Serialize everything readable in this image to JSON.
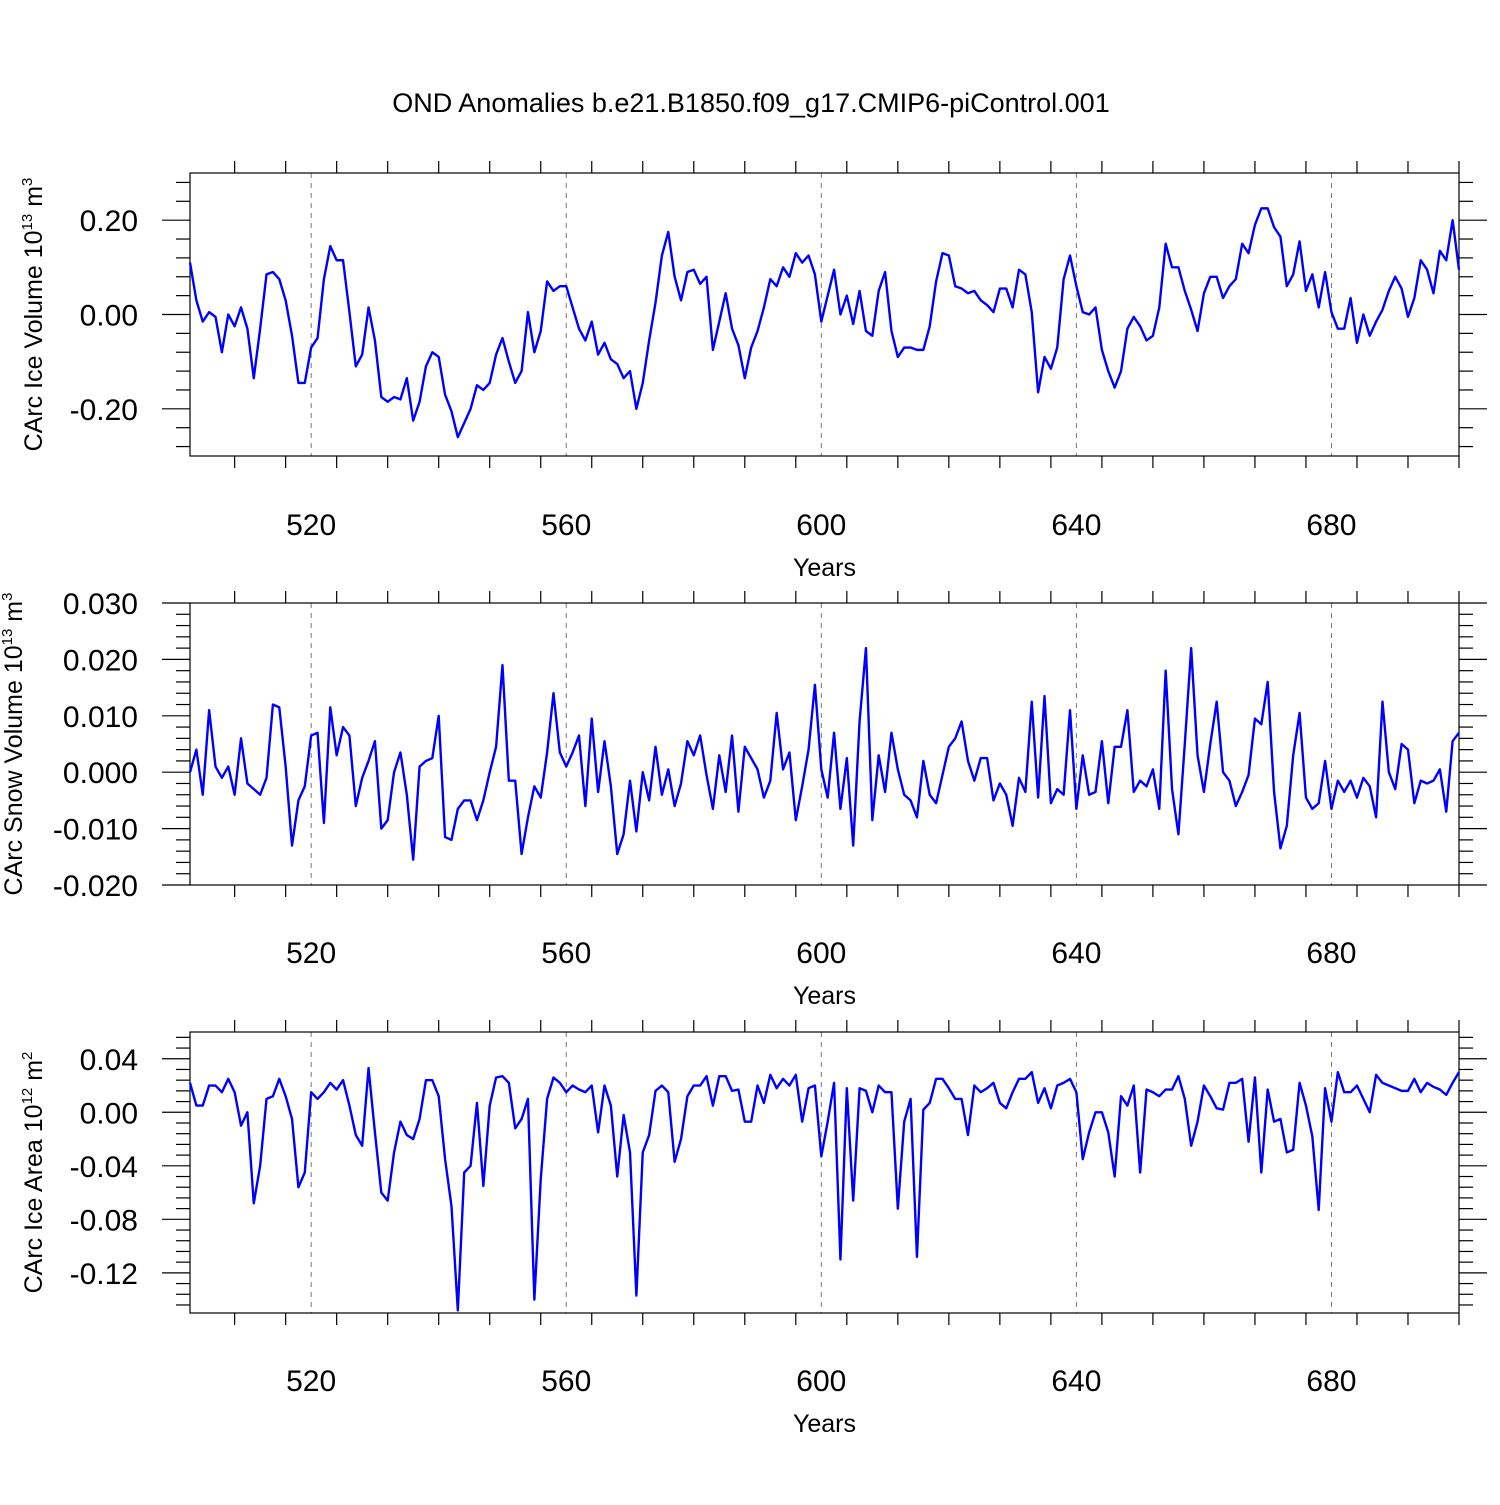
{
  "title": "OND Anomalies b.e21.B1850.f09_g17.CMIP6-piControl.001",
  "chart_data": [
    {
      "type": "line",
      "xlabel": "Years",
      "ylabel": "CArc Ice Volume 10",
      "ylabel_exp": "13",
      "ylabel_unit": " m",
      "ylabel_unit_exp": "3",
      "xlim": [
        501,
        700
      ],
      "ylim": [
        -0.3,
        0.3
      ],
      "xticks": [
        520,
        560,
        600,
        640,
        680
      ],
      "xtick_labels": [
        "520",
        "560",
        "600",
        "640",
        "680"
      ],
      "yticks": [
        -0.2,
        0.0,
        0.2
      ],
      "ytick_labels": [
        "-0.20",
        "0.00",
        "0.20"
      ],
      "series_color": "#0000ff",
      "x_start": 501,
      "values": [
        0.11,
        0.03,
        -0.015,
        0.005,
        -0.005,
        -0.08,
        0.0,
        -0.025,
        0.015,
        -0.03,
        -0.135,
        -0.03,
        0.085,
        0.09,
        0.075,
        0.03,
        -0.045,
        -0.145,
        -0.145,
        -0.07,
        -0.05,
        0.075,
        0.145,
        0.115,
        0.115,
        0.005,
        -0.11,
        -0.085,
        0.015,
        -0.055,
        -0.175,
        -0.185,
        -0.175,
        -0.18,
        -0.135,
        -0.225,
        -0.185,
        -0.11,
        -0.08,
        -0.09,
        -0.17,
        -0.205,
        -0.26,
        -0.23,
        -0.2,
        -0.15,
        -0.16,
        -0.145,
        -0.085,
        -0.05,
        -0.1,
        -0.145,
        -0.12,
        0.005,
        -0.08,
        -0.035,
        0.07,
        0.05,
        0.06,
        0.06,
        0.015,
        -0.03,
        -0.055,
        -0.015,
        -0.085,
        -0.06,
        -0.095,
        -0.105,
        -0.135,
        -0.12,
        -0.2,
        -0.145,
        -0.055,
        0.025,
        0.125,
        0.175,
        0.08,
        0.03,
        0.09,
        0.095,
        0.065,
        0.08,
        -0.075,
        -0.015,
        0.045,
        -0.03,
        -0.065,
        -0.135,
        -0.07,
        -0.035,
        0.015,
        0.075,
        0.06,
        0.1,
        0.08,
        0.13,
        0.11,
        0.125,
        0.085,
        -0.015,
        0.04,
        0.095,
        0.0,
        0.04,
        -0.02,
        0.05,
        -0.035,
        -0.045,
        0.05,
        0.09,
        -0.035,
        -0.09,
        -0.07,
        -0.07,
        -0.075,
        -0.075,
        -0.025,
        0.07,
        0.13,
        0.125,
        0.06,
        0.055,
        0.045,
        0.05,
        0.03,
        0.02,
        0.005,
        0.055,
        0.055,
        0.015,
        0.095,
        0.085,
        0.005,
        -0.165,
        -0.09,
        -0.115,
        -0.07,
        0.075,
        0.125,
        0.06,
        0.005,
        0.0,
        0.015,
        -0.075,
        -0.12,
        -0.155,
        -0.12,
        -0.03,
        -0.005,
        -0.025,
        -0.055,
        -0.045,
        0.015,
        0.15,
        0.1,
        0.1,
        0.05,
        0.01,
        -0.035,
        0.045,
        0.08,
        0.08,
        0.035,
        0.06,
        0.075,
        0.15,
        0.13,
        0.19,
        0.225,
        0.225,
        0.185,
        0.165,
        0.06,
        0.085,
        0.155,
        0.05,
        0.085,
        0.015,
        0.09,
        0.005,
        -0.03,
        -0.03,
        0.035,
        -0.06,
        0.0,
        -0.045,
        -0.015,
        0.01,
        0.05,
        0.08,
        0.055,
        -0.005,
        0.035,
        0.115,
        0.095,
        0.045,
        0.135,
        0.115,
        0.2,
        0.095
      ]
    },
    {
      "type": "line",
      "xlabel": "Years",
      "ylabel": "CArc Snow Volume 10",
      "ylabel_exp": "13",
      "ylabel_unit": " m",
      "ylabel_unit_exp": "3",
      "xlim": [
        501,
        700
      ],
      "ylim": [
        -0.02,
        0.03
      ],
      "xticks": [
        520,
        560,
        600,
        640,
        680
      ],
      "xtick_labels": [
        "520",
        "560",
        "600",
        "640",
        "680"
      ],
      "yticks": [
        -0.02,
        -0.01,
        0.0,
        0.01,
        0.02,
        0.03
      ],
      "ytick_labels": [
        "-0.020",
        "-0.010",
        "0.000",
        "0.010",
        "0.020",
        "0.030"
      ],
      "series_color": "#0000ff",
      "x_start": 501,
      "values": [
        0.0,
        0.004,
        -0.004,
        0.011,
        0.001,
        -0.001,
        0.001,
        -0.004,
        0.006,
        -0.002,
        -0.003,
        -0.004,
        -0.001,
        0.012,
        0.0115,
        0.001,
        -0.013,
        -0.005,
        -0.0025,
        0.0065,
        0.007,
        -0.009,
        0.0115,
        0.003,
        0.008,
        0.0065,
        -0.006,
        -0.001,
        0.002,
        0.0055,
        -0.01,
        -0.0085,
        0.0,
        0.0035,
        -0.004,
        -0.0155,
        0.001,
        0.002,
        0.0025,
        0.01,
        -0.0115,
        -0.012,
        -0.0065,
        -0.005,
        -0.005,
        -0.0085,
        -0.005,
        0.0,
        0.0045,
        0.019,
        -0.0015,
        -0.0015,
        -0.0145,
        -0.008,
        -0.0025,
        -0.0045,
        0.0035,
        0.014,
        0.0035,
        0.001,
        0.0035,
        0.0065,
        -0.006,
        0.0095,
        -0.0035,
        0.0055,
        -0.0025,
        -0.0145,
        -0.011,
        -0.0015,
        -0.0105,
        0.0,
        -0.005,
        0.0045,
        -0.004,
        0.0005,
        -0.006,
        -0.002,
        0.0055,
        0.003,
        0.0065,
        -0.0005,
        -0.0065,
        0.003,
        -0.0035,
        0.0065,
        -0.007,
        0.0045,
        0.0025,
        0.0005,
        -0.0045,
        -0.0015,
        0.0105,
        0.0005,
        0.0035,
        -0.0085,
        -0.0025,
        0.004,
        0.0155,
        0.0005,
        -0.0045,
        0.007,
        -0.0065,
        0.0025,
        -0.013,
        0.009,
        0.022,
        -0.0085,
        0.003,
        -0.0035,
        0.007,
        0.0005,
        -0.004,
        -0.005,
        -0.008,
        0.002,
        -0.004,
        -0.0055,
        -0.0005,
        0.0045,
        0.006,
        0.009,
        0.002,
        -0.0015,
        0.0025,
        0.0025,
        -0.005,
        -0.002,
        -0.004,
        -0.0095,
        -0.001,
        -0.0035,
        0.0125,
        -0.0045,
        0.0135,
        -0.0055,
        -0.003,
        -0.004,
        0.011,
        -0.0065,
        0.003,
        -0.004,
        -0.0035,
        0.0055,
        -0.0055,
        0.0045,
        0.0045,
        0.011,
        -0.0035,
        -0.0015,
        -0.0025,
        0.0005,
        -0.0065,
        0.018,
        -0.003,
        -0.011,
        0.005,
        0.022,
        0.003,
        -0.0035,
        0.005,
        0.0125,
        0.0,
        -0.0015,
        -0.006,
        -0.0035,
        -0.0005,
        0.0095,
        0.0085,
        0.016,
        -0.0035,
        -0.0135,
        -0.0095,
        0.003,
        0.0105,
        -0.0045,
        -0.0065,
        -0.0055,
        0.002,
        -0.0065,
        -0.0015,
        -0.0035,
        -0.0015,
        -0.0045,
        -0.001,
        -0.0025,
        -0.008,
        0.0125,
        0.0,
        -0.003,
        0.005,
        0.004,
        -0.0055,
        -0.0015,
        -0.002,
        -0.0015,
        0.0005,
        -0.007,
        0.0055,
        0.007
      ]
    },
    {
      "type": "line",
      "xlabel": "Years",
      "ylabel": "CArc Ice Area 10",
      "ylabel_exp": "12",
      "ylabel_unit": " m",
      "ylabel_unit_exp": "2",
      "xlim": [
        501,
        700
      ],
      "ylim": [
        -0.15,
        0.06
      ],
      "xticks": [
        520,
        560,
        600,
        640,
        680
      ],
      "xtick_labels": [
        "520",
        "560",
        "600",
        "640",
        "680"
      ],
      "yticks": [
        -0.12,
        -0.08,
        -0.04,
        0.0,
        0.04
      ],
      "ytick_labels": [
        "-0.12",
        "-0.08",
        "-0.04",
        "0.00",
        "0.04"
      ],
      "series_color": "#0000ff",
      "x_start": 501,
      "values": [
        0.022,
        0.005,
        0.005,
        0.02,
        0.02,
        0.015,
        0.025,
        0.015,
        -0.01,
        0.0,
        -0.068,
        -0.04,
        0.01,
        0.012,
        0.025,
        0.012,
        -0.005,
        -0.056,
        -0.045,
        0.015,
        0.01,
        0.015,
        0.022,
        0.017,
        0.024,
        0.005,
        -0.017,
        -0.025,
        0.033,
        -0.015,
        -0.06,
        -0.066,
        -0.03,
        -0.007,
        -0.017,
        -0.02,
        -0.005,
        0.024,
        0.024,
        0.012,
        -0.035,
        -0.07,
        -0.148,
        -0.045,
        -0.04,
        0.007,
        -0.055,
        0.005,
        0.026,
        0.027,
        0.022,
        -0.012,
        -0.005,
        0.01,
        -0.14,
        -0.05,
        0.01,
        0.026,
        0.022,
        0.015,
        0.02,
        0.017,
        0.015,
        0.02,
        -0.015,
        0.02,
        0.005,
        -0.048,
        -0.002,
        -0.03,
        -0.137,
        -0.03,
        -0.017,
        0.016,
        0.02,
        0.015,
        -0.037,
        -0.02,
        0.012,
        0.02,
        0.02,
        0.027,
        0.005,
        0.027,
        0.027,
        0.016,
        0.017,
        -0.007,
        -0.007,
        0.02,
        0.007,
        0.028,
        0.018,
        0.025,
        0.02,
        0.028,
        -0.007,
        0.018,
        0.02,
        -0.033,
        -0.007,
        0.022,
        -0.11,
        0.018,
        -0.066,
        0.018,
        0.016,
        0.0,
        0.02,
        0.015,
        0.015,
        -0.072,
        -0.007,
        0.01,
        -0.108,
        0.002,
        0.007,
        0.025,
        0.025,
        0.018,
        0.01,
        0.01,
        -0.017,
        0.02,
        0.015,
        0.018,
        0.022,
        0.007,
        0.003,
        0.015,
        0.025,
        0.025,
        0.03,
        0.007,
        0.018,
        0.003,
        0.02,
        0.022,
        0.025,
        0.015,
        -0.035,
        -0.015,
        0.0,
        0.0,
        -0.015,
        -0.048,
        0.012,
        0.005,
        0.02,
        -0.045,
        0.017,
        0.015,
        0.012,
        0.017,
        0.017,
        0.027,
        0.01,
        -0.025,
        -0.007,
        0.02,
        0.012,
        0.003,
        0.002,
        0.022,
        0.022,
        0.025,
        -0.022,
        0.026,
        -0.045,
        0.017,
        -0.007,
        -0.005,
        -0.03,
        -0.028,
        0.022,
        0.005,
        -0.018,
        -0.073,
        0.018,
        -0.007,
        0.03,
        0.015,
        0.015,
        0.02,
        0.01,
        0.0,
        0.028,
        0.022,
        0.02,
        0.018,
        0.016,
        0.016,
        0.025,
        0.015,
        0.022,
        0.019,
        0.017,
        0.013,
        0.022,
        0.03
      ]
    }
  ]
}
